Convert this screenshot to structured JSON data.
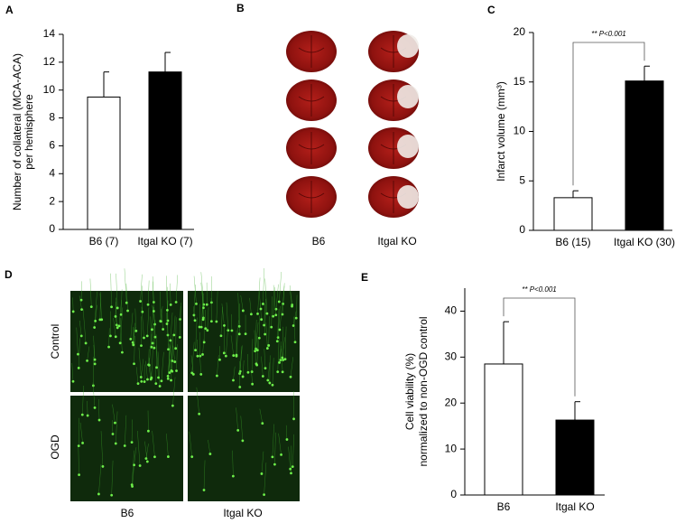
{
  "panels": {
    "B": {
      "label": "B",
      "categories": [
        "B6",
        "Itgal KO"
      ]
    },
    "D": {
      "label": "D",
      "rows": [
        "Control",
        "OGD"
      ],
      "categories": [
        "B6",
        "Itgal KO"
      ]
    }
  },
  "chart_data": [
    {
      "type": "bar",
      "panel": "A",
      "y_label": [
        "Number of collateral (MCA-ACA)",
        "per hemisphere"
      ],
      "categories": [
        "B6 (7)",
        "Itgal KO (7)"
      ],
      "values": [
        9.5,
        11.3
      ],
      "errors": [
        1.8,
        1.4
      ],
      "colors": [
        "#ffffff",
        "#000000"
      ],
      "ylim": [
        0,
        14
      ],
      "yticks": [
        0,
        2,
        4,
        6,
        8,
        10,
        12,
        14
      ]
    },
    {
      "type": "bar",
      "panel": "C",
      "y_label": [
        "Infarct volume (mm³)"
      ],
      "categories": [
        "B6 (15)",
        "Itgal KO (30)"
      ],
      "values": [
        3.3,
        15.1
      ],
      "errors": [
        0.7,
        1.5
      ],
      "colors": [
        "#ffffff",
        "#000000"
      ],
      "ylim": [
        0,
        20
      ],
      "yticks": [
        0,
        5,
        10,
        15,
        20
      ],
      "annotation": "** P<0.001"
    },
    {
      "type": "bar",
      "panel": "E",
      "y_label": [
        "Cell viability (%)",
        "normalized to non-OGD control"
      ],
      "categories": [
        "B6",
        "Itgal KO"
      ],
      "values": [
        28.5,
        16.3
      ],
      "errors": [
        9.2,
        4.0
      ],
      "colors": [
        "#ffffff",
        "#000000"
      ],
      "ylim": [
        0,
        45
      ],
      "yticks": [
        0,
        10,
        20,
        30,
        40
      ],
      "annotation": "** P<0.001"
    }
  ]
}
